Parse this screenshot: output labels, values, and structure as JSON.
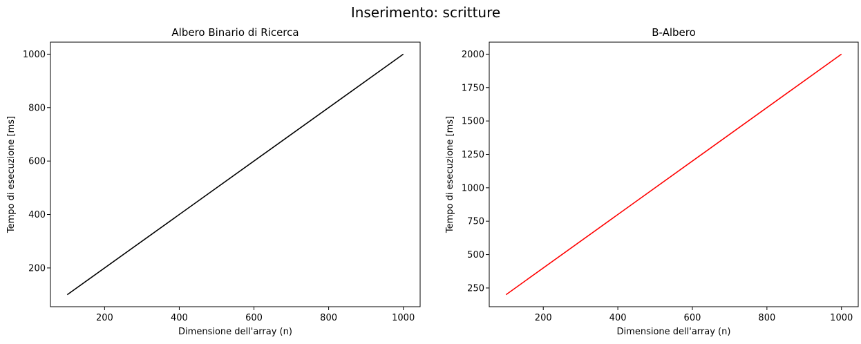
{
  "figure": {
    "title": "Inserimento: scritture"
  },
  "chart_data": [
    {
      "type": "line",
      "title": "Albero Binario di Ricerca",
      "xlabel": "Dimensione dell'array (n)",
      "ylabel": "Tempo di esecuzione [ms]",
      "xlim": [
        55,
        1045
      ],
      "ylim": [
        55,
        1045
      ],
      "xticks": [
        200,
        400,
        600,
        800,
        1000
      ],
      "yticks": [
        200,
        400,
        600,
        800,
        1000
      ],
      "grid": false,
      "series": [
        {
          "color": "#000000",
          "x": [
            100,
            1000
          ],
          "y": [
            100,
            1000
          ]
        }
      ]
    },
    {
      "type": "line",
      "title": "B-Albero",
      "xlabel": "Dimensione dell'array (n)",
      "ylabel": "Tempo di esecuzione [ms]",
      "xlim": [
        55,
        1045
      ],
      "ylim": [
        110,
        2090
      ],
      "xticks": [
        200,
        400,
        600,
        800,
        1000
      ],
      "yticks": [
        250,
        500,
        750,
        1000,
        1250,
        1500,
        1750,
        2000
      ],
      "grid": false,
      "series": [
        {
          "color": "#ff0000",
          "x": [
            100,
            1000
          ],
          "y": [
            200,
            2000
          ]
        }
      ]
    }
  ]
}
